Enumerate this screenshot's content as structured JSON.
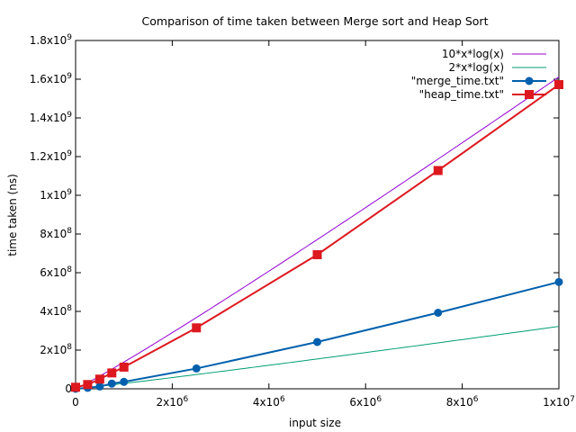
{
  "chart_data": {
    "type": "line",
    "title": "Comparison of time taken between Merge sort and Heap Sort",
    "xlabel": "input size",
    "ylabel": "time taken (ns)",
    "xlim": [
      0,
      10000000
    ],
    "ylim": [
      0,
      1800000000
    ],
    "grid": false,
    "legend_position": "top-right",
    "x_ticks": [
      {
        "value": 0,
        "base": "0",
        "exp": ""
      },
      {
        "value": 2000000,
        "base": "2x10",
        "exp": "6"
      },
      {
        "value": 4000000,
        "base": "4x10",
        "exp": "6"
      },
      {
        "value": 6000000,
        "base": "6x10",
        "exp": "6"
      },
      {
        "value": 8000000,
        "base": "8x10",
        "exp": "6"
      },
      {
        "value": 10000000,
        "base": "1x10",
        "exp": "7"
      }
    ],
    "y_ticks": [
      {
        "value": 0,
        "base": "0",
        "exp": ""
      },
      {
        "value": 200000000,
        "base": "2x10",
        "exp": "8"
      },
      {
        "value": 400000000,
        "base": "4x10",
        "exp": "8"
      },
      {
        "value": 600000000,
        "base": "6x10",
        "exp": "8"
      },
      {
        "value": 800000000,
        "base": "8x10",
        "exp": "8"
      },
      {
        "value": 1000000000,
        "base": "1x10",
        "exp": "9"
      },
      {
        "value": 1200000000,
        "base": "1.2x10",
        "exp": "9"
      },
      {
        "value": 1400000000,
        "base": "1.4x10",
        "exp": "9"
      },
      {
        "value": 1600000000,
        "base": "1.6x10",
        "exp": "9"
      },
      {
        "value": 1800000000,
        "base": "1.8x10",
        "exp": "9"
      }
    ],
    "series": [
      {
        "name": "10*x*log(x)",
        "kind": "function",
        "coef": 10,
        "color": "#9400d3",
        "marker": "none"
      },
      {
        "name": "2*x*log(x)",
        "kind": "function",
        "coef": 2,
        "color": "#009e73",
        "marker": "none"
      },
      {
        "name": "\"merge_time.txt\"",
        "kind": "data",
        "color": "#0060ad",
        "marker": "circle",
        "x": [
          0,
          250000,
          500000,
          750000,
          1000000,
          2500000,
          5000000,
          7500000,
          10000000
        ],
        "y": [
          0,
          5000000,
          12000000,
          27000000,
          36000000,
          105000000,
          242000000,
          393000000,
          552000000
        ]
      },
      {
        "name": "\"heap_time.txt\"",
        "kind": "data",
        "color": "#dd181f",
        "marker": "square",
        "x": [
          0,
          250000,
          500000,
          750000,
          1000000,
          2500000,
          5000000,
          7500000,
          10000000
        ],
        "y": [
          8000000,
          22000000,
          50000000,
          82000000,
          112000000,
          315000000,
          693000000,
          1128000000,
          1572000000
        ]
      }
    ]
  }
}
